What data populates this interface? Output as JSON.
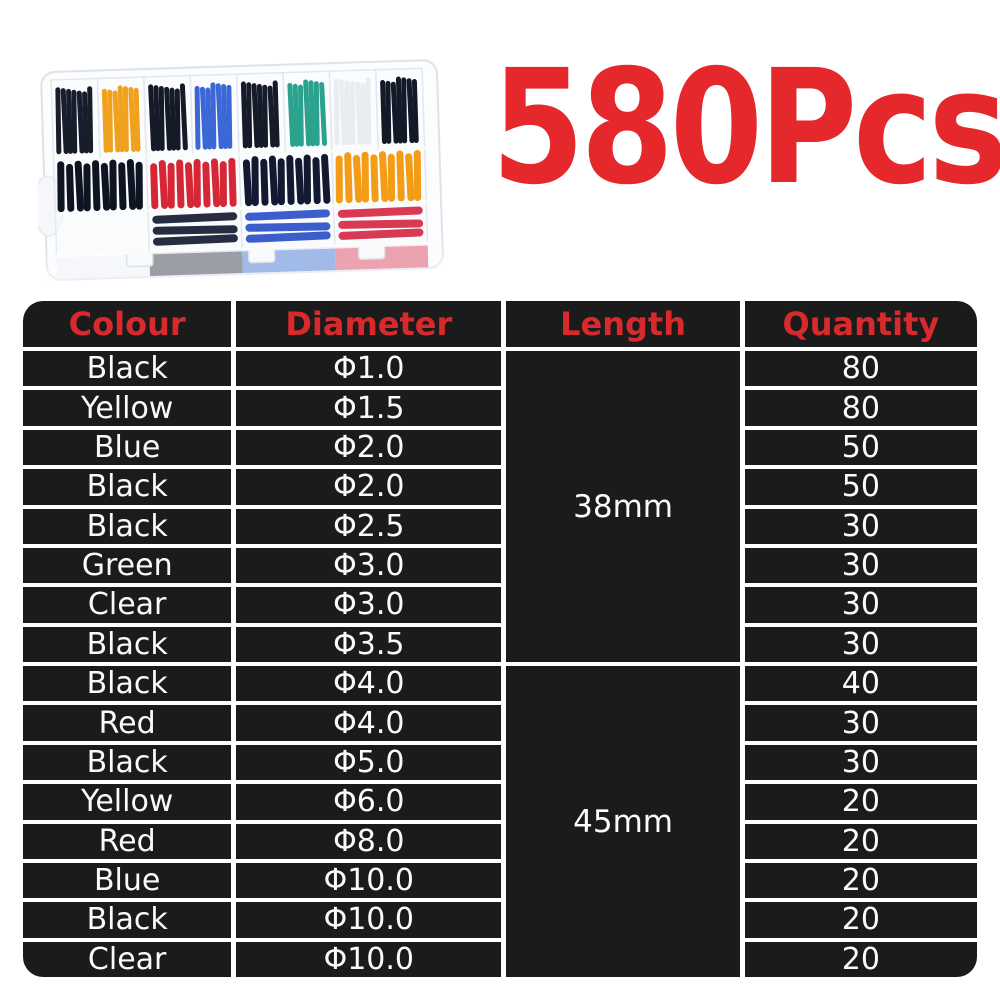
{
  "header": {
    "count_label": "580Pcs"
  },
  "photo": {
    "alt": "clear plastic organizer case filled with assorted colored heat shrink tubes",
    "back_row_colors": [
      "#181d2c",
      "#f0a11d",
      "#151a29",
      "#3b68d6",
      "#161b2a",
      "#2aa28e",
      "#e9edf2",
      "#141927"
    ],
    "middle_row_colors": [
      "#0e1421",
      "#d62736",
      "#121931",
      "#f39c17"
    ],
    "bottom_row_colors": [
      "#eef1f5",
      "#151c32",
      "#2b51c8",
      "#d72944"
    ],
    "front_row_colors": [
      "#f0f2f6",
      "#1a202e",
      "#2c60c8",
      "#d62b46"
    ]
  },
  "colors": {
    "accent_red": "#e5282b",
    "header_red": "#d8292d",
    "table_black": "#1b1b1b",
    "grid_white": "#ffffff"
  },
  "table": {
    "headers": [
      "Colour",
      "Diameter",
      "Length",
      "Quantity"
    ],
    "groups": [
      {
        "length": "38mm",
        "rows": [
          {
            "colour": "Black",
            "diameter": "Φ1.0",
            "quantity": "80"
          },
          {
            "colour": "Yellow",
            "diameter": "Φ1.5",
            "quantity": "80"
          },
          {
            "colour": "Blue",
            "diameter": "Φ2.0",
            "quantity": "50"
          },
          {
            "colour": "Black",
            "diameter": "Φ2.0",
            "quantity": "50"
          },
          {
            "colour": "Black",
            "diameter": "Φ2.5",
            "quantity": "30"
          },
          {
            "colour": "Green",
            "diameter": "Φ3.0",
            "quantity": "30"
          },
          {
            "colour": "Clear",
            "diameter": "Φ3.0",
            "quantity": "30"
          },
          {
            "colour": "Black",
            "diameter": "Φ3.5",
            "quantity": "30"
          }
        ]
      },
      {
        "length": "45mm",
        "rows": [
          {
            "colour": "Black",
            "diameter": "Φ4.0",
            "quantity": "40"
          },
          {
            "colour": "Red",
            "diameter": "Φ4.0",
            "quantity": "30"
          },
          {
            "colour": "Black",
            "diameter": "Φ5.0",
            "quantity": "30"
          },
          {
            "colour": "Yellow",
            "diameter": "Φ6.0",
            "quantity": "20"
          },
          {
            "colour": "Red",
            "diameter": "Φ8.0",
            "quantity": "20"
          },
          {
            "colour": "Blue",
            "diameter": "Φ10.0",
            "quantity": "20"
          },
          {
            "colour": "Black",
            "diameter": "Φ10.0",
            "quantity": "20"
          },
          {
            "colour": "Clear",
            "diameter": "Φ10.0",
            "quantity": "20"
          }
        ]
      }
    ]
  }
}
